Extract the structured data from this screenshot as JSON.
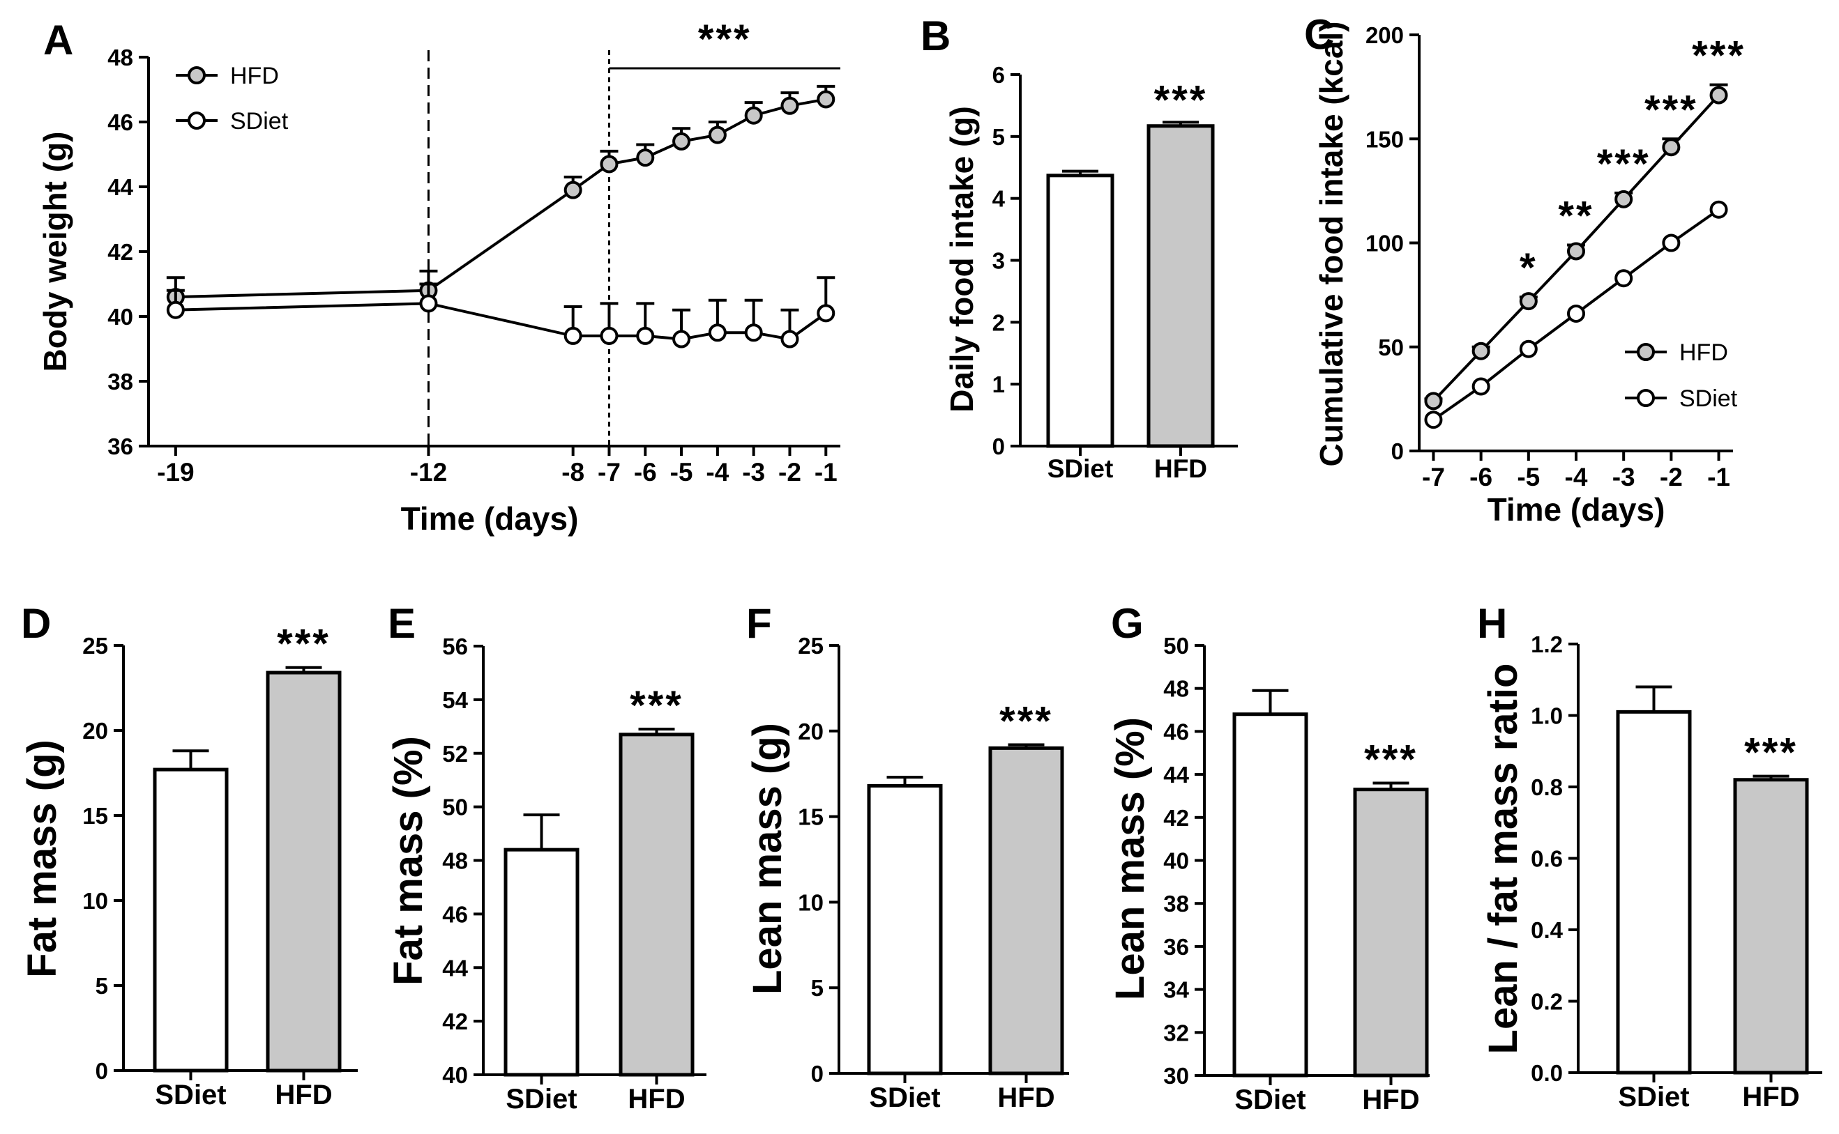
{
  "colors": {
    "HFD": "#c8c8c8",
    "SDiet": "#ffffff",
    "stroke": "#000000"
  },
  "chart_data": [
    {
      "panel": "A",
      "type": "line",
      "xlabel": "Time (days)",
      "ylabel": "Body weight (g)",
      "x": [
        -19,
        -12,
        -8,
        -7,
        -6,
        -5,
        -4,
        -3,
        -2,
        -1
      ],
      "x_tick_labels": [
        "-19",
        "-12",
        "-8",
        "-7",
        "-6",
        "-5",
        "-4",
        "-3",
        "-2",
        "-1"
      ],
      "ylim": [
        36,
        48
      ],
      "y_ticks": [
        36,
        38,
        40,
        42,
        44,
        46,
        48
      ],
      "series": [
        {
          "name": "HFD",
          "values": [
            40.6,
            40.8,
            43.9,
            44.7,
            44.9,
            45.4,
            45.6,
            46.2,
            46.5,
            46.7
          ],
          "errors": [
            0.6,
            0.6,
            0.4,
            0.4,
            0.4,
            0.4,
            0.4,
            0.4,
            0.4,
            0.4
          ]
        },
        {
          "name": "SDiet",
          "values": [
            40.2,
            40.4,
            39.4,
            39.4,
            39.4,
            39.3,
            39.5,
            39.5,
            39.3,
            40.1
          ],
          "errors": [
            0.6,
            0.6,
            0.9,
            1.0,
            1.0,
            0.9,
            1.0,
            1.0,
            0.9,
            1.1
          ]
        }
      ],
      "vlines": [
        -12,
        -7
      ],
      "significance": {
        "label": "***",
        "from": -7,
        "to": -1
      },
      "legend": [
        "HFD",
        "SDiet"
      ]
    },
    {
      "panel": "B",
      "type": "bar",
      "categories": [
        "SDiet",
        "HFD"
      ],
      "values": [
        4.37,
        5.17
      ],
      "errors": [
        0.07,
        0.06
      ],
      "ylabel": "Daily food intake (g)",
      "ylim": [
        0,
        6
      ],
      "y_ticks": [
        0,
        1,
        2,
        3,
        4,
        5,
        6
      ],
      "significance": [
        "",
        "***"
      ]
    },
    {
      "panel": "C",
      "type": "line",
      "xlabel": "Time (days)",
      "ylabel": "Cumulative food intake (kcal)",
      "x": [
        -7,
        -6,
        -5,
        -4,
        -3,
        -2,
        -1
      ],
      "x_tick_labels": [
        "-7",
        "-6",
        "-5",
        "-4",
        "-3",
        "-2",
        "-1"
      ],
      "ylim": [
        0,
        200
      ],
      "y_ticks": [
        0,
        50,
        100,
        150,
        200
      ],
      "series": [
        {
          "name": "HFD",
          "values": [
            24,
            48,
            72,
            96,
            121,
            146,
            171
          ],
          "errors": [
            1,
            2,
            2,
            3,
            3,
            4,
            5
          ]
        },
        {
          "name": "SDiet",
          "values": [
            15,
            31,
            49,
            66,
            83,
            100,
            116
          ],
          "errors": [
            0,
            0,
            0,
            0,
            0,
            0,
            0
          ]
        }
      ],
      "significance": [
        "",
        "",
        "*",
        "**",
        "***",
        "***",
        "***"
      ],
      "legend": [
        "HFD",
        "SDiet"
      ]
    },
    {
      "panel": "D",
      "type": "bar",
      "categories": [
        "SDiet",
        "HFD"
      ],
      "values": [
        17.7,
        23.4
      ],
      "errors": [
        1.1,
        0.3
      ],
      "ylabel": "Fat mass (g)",
      "ylim": [
        0,
        25
      ],
      "y_ticks": [
        0,
        5,
        10,
        15,
        20,
        25
      ],
      "significance": [
        "",
        "***"
      ]
    },
    {
      "panel": "E",
      "type": "bar",
      "categories": [
        "SDiet",
        "HFD"
      ],
      "values": [
        48.4,
        52.7
      ],
      "errors": [
        1.3,
        0.2
      ],
      "ylabel": "Fat mass (%)",
      "ylim": [
        40,
        56
      ],
      "y_ticks": [
        40,
        42,
        44,
        46,
        48,
        50,
        52,
        54,
        56
      ],
      "significance": [
        "",
        "***"
      ]
    },
    {
      "panel": "F",
      "type": "bar",
      "categories": [
        "SDiet",
        "HFD"
      ],
      "values": [
        16.8,
        19.0
      ],
      "errors": [
        0.5,
        0.2
      ],
      "ylabel": "Lean mass (g)",
      "ylim": [
        0,
        25
      ],
      "y_ticks": [
        0,
        5,
        10,
        15,
        20,
        25
      ],
      "significance": [
        "",
        "***"
      ]
    },
    {
      "panel": "G",
      "type": "bar",
      "categories": [
        "SDiet",
        "HFD"
      ],
      "values": [
        46.8,
        43.3
      ],
      "errors": [
        1.1,
        0.3
      ],
      "ylabel": "Lean mass (%)",
      "ylim": [
        30,
        50
      ],
      "y_ticks": [
        30,
        32,
        34,
        36,
        38,
        40,
        42,
        44,
        46,
        48,
        50
      ],
      "significance": [
        "",
        "***"
      ]
    },
    {
      "panel": "H",
      "type": "bar",
      "categories": [
        "SDiet",
        "HFD"
      ],
      "values": [
        1.01,
        0.82
      ],
      "errors": [
        0.07,
        0.01
      ],
      "ylabel": "Lean / fat mass ratio",
      "ylim": [
        0,
        1.2
      ],
      "y_ticks": [
        0.0,
        0.2,
        0.4,
        0.6,
        0.8,
        1.0,
        1.2
      ],
      "y_tick_labels": [
        "0.0",
        "0.2",
        "0.4",
        "0.6",
        "0.8",
        "1.0",
        "1.2"
      ],
      "significance": [
        "",
        "***"
      ]
    }
  ]
}
